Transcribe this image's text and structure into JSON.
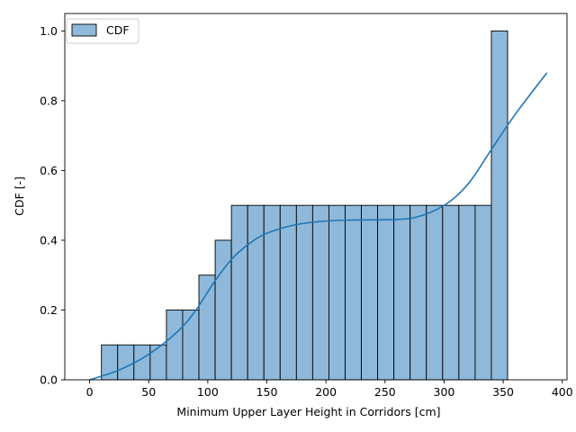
{
  "chart_data": {
    "type": "bar",
    "title": "",
    "xlabel": "Minimum Upper Layer Height in Corridors [cm]",
    "ylabel": "CDF [-]",
    "xlim": [
      -21,
      404
    ],
    "ylim": [
      0,
      1.05
    ],
    "xticks": [
      0,
      50,
      100,
      150,
      200,
      250,
      300,
      350,
      400
    ],
    "yticks": [
      0.0,
      0.2,
      0.4,
      0.6,
      0.8,
      1.0
    ],
    "xtick_labels": [
      "0",
      "50",
      "100",
      "150",
      "200",
      "250",
      "300",
      "350",
      "400"
    ],
    "ytick_labels": [
      "0.0",
      "0.2",
      "0.4",
      "0.6",
      "0.8",
      "1.0"
    ],
    "bin_edges": [
      10,
      23.75,
      37.5,
      51.25,
      65,
      78.75,
      92.5,
      106.25,
      120,
      133.75,
      147.5,
      161.25,
      175,
      188.75,
      202.5,
      216.25,
      230,
      243.75,
      257.5,
      271.25,
      285,
      298.75,
      312.5,
      326.25,
      340,
      353.75
    ],
    "bar_values": [
      0.1,
      0.1,
      0.1,
      0.1,
      0.2,
      0.2,
      0.3,
      0.4,
      0.5,
      0.5,
      0.5,
      0.5,
      0.5,
      0.5,
      0.5,
      0.5,
      0.5,
      0.5,
      0.5,
      0.5,
      0.5,
      0.5,
      0.5,
      0.5,
      1.0
    ],
    "kde_line": {
      "x": [
        0,
        25,
        50,
        75,
        90,
        105,
        120,
        135,
        150,
        175,
        200,
        225,
        250,
        275,
        300,
        320,
        340,
        360,
        387
      ],
      "y": [
        0.0,
        0.028,
        0.073,
        0.14,
        0.2,
        0.278,
        0.345,
        0.39,
        0.42,
        0.445,
        0.455,
        0.458,
        0.459,
        0.465,
        0.5,
        0.56,
        0.66,
        0.76,
        0.88
      ]
    },
    "legend": {
      "entries": [
        "CDF"
      ],
      "placement": "top-left"
    },
    "grid": false,
    "colors": {
      "bar_fill": "#8fb9da",
      "bar_edge": "#000000",
      "line": "#1f77b4"
    }
  }
}
